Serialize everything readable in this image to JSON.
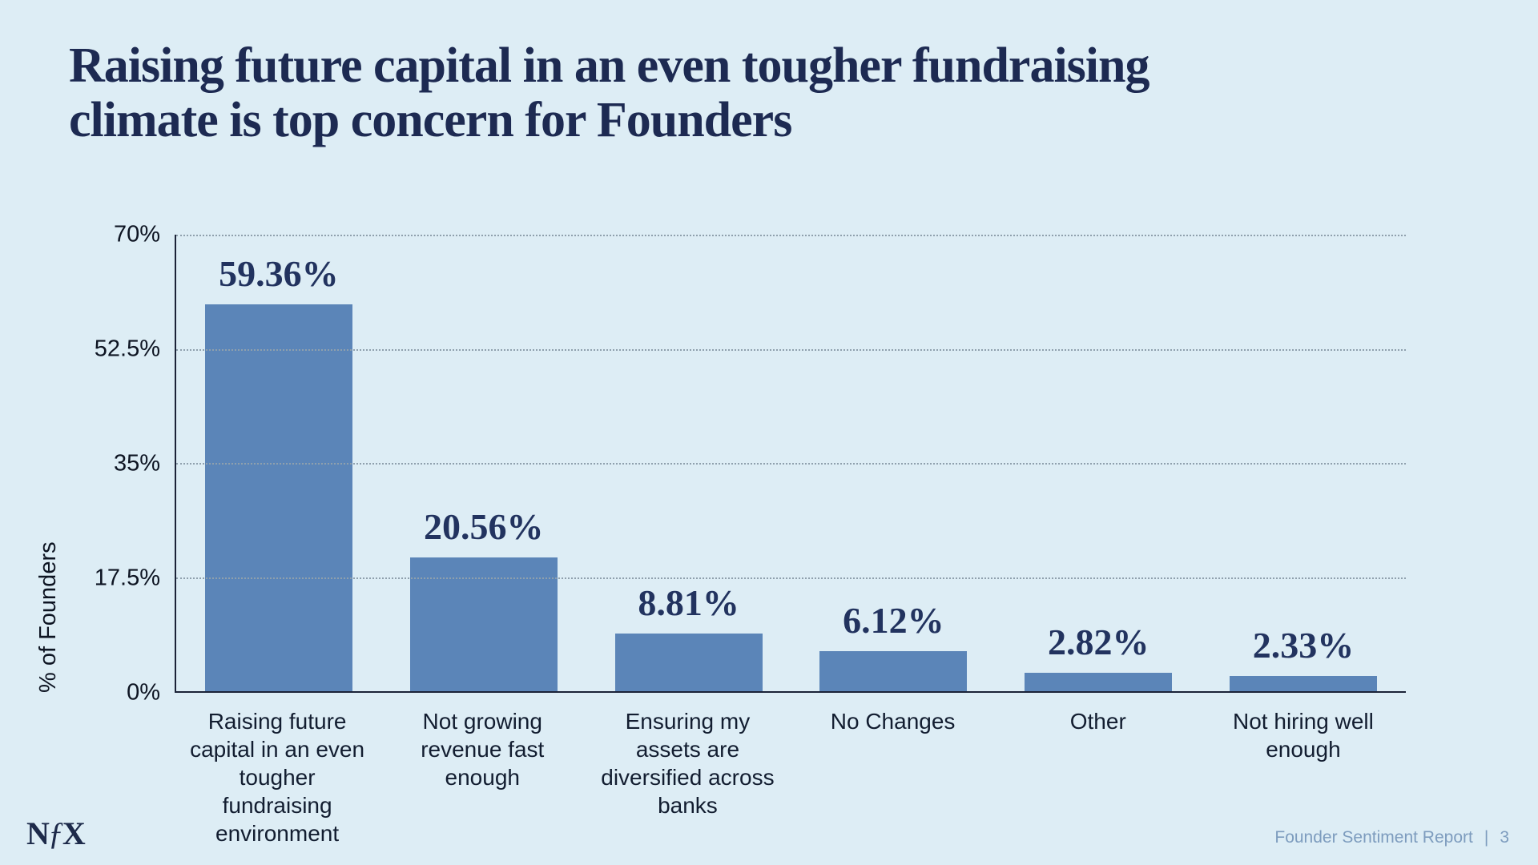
{
  "slide": {
    "title_line1": "Raising future capital in an even tougher fundraising",
    "title_line2": "climate is top concern for Founders",
    "logo": {
      "n": "N",
      "f": "ƒ",
      "x": "X"
    },
    "footer": {
      "report_name": "Founder Sentiment Report",
      "separator": "|",
      "page_number": "3"
    }
  },
  "chart_data": {
    "type": "bar",
    "title": "",
    "xlabel": "",
    "ylabel": "% of Founders",
    "ylim": [
      0,
      70
    ],
    "grid": "horizontal-dotted",
    "legend": "none",
    "bar_color": "#5b85b8",
    "yticks": [
      {
        "label": "70%",
        "value": 70
      },
      {
        "label": "52.5%",
        "value": 52.5
      },
      {
        "label": "35%",
        "value": 35
      },
      {
        "label": "17.5%",
        "value": 17.5
      },
      {
        "label": "0%",
        "value": 0
      }
    ],
    "categories": [
      "Raising future capital in an even tougher fundraising environment",
      "Not growing revenue fast enough",
      "Ensuring my assets are diversified across banks",
      "No Changes",
      "Other",
      "Not hiring well enough"
    ],
    "values": [
      59.36,
      20.56,
      8.81,
      6.12,
      2.82,
      2.33
    ],
    "value_labels": [
      "59.36%",
      "20.56%",
      "8.81%",
      "6.12%",
      "2.82%",
      "2.33%"
    ]
  }
}
